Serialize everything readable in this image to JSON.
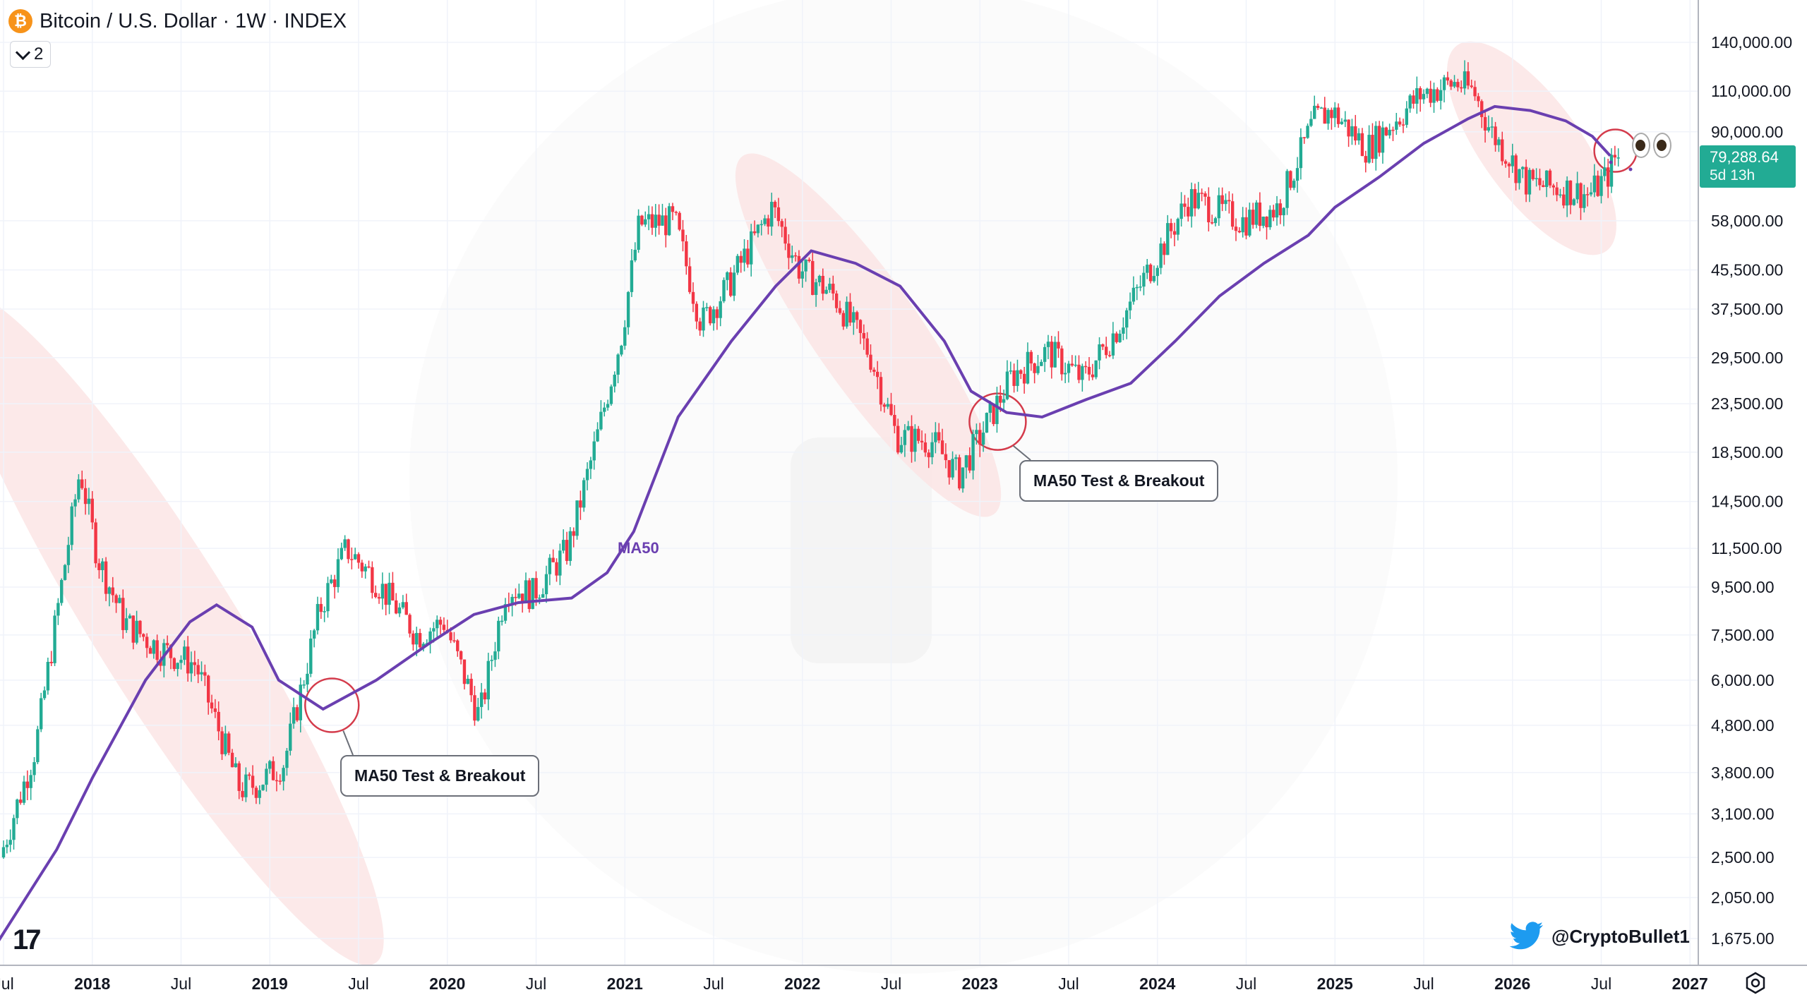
{
  "header": {
    "title": "Bitcoin / U.S. Dollar · 1W · INDEX",
    "symbol_icon": "bitcoin-icon",
    "indicator_count": "2"
  },
  "price_tag": {
    "price": "79,288.64",
    "countdown": "5d 13h"
  },
  "annotations": {
    "callout_1": "MA50 Test & Breakout",
    "callout_2": "MA50 Test & Breakout",
    "ma_label": "MA50"
  },
  "watermark": {
    "handle": "@CryptoBullet1"
  },
  "colors": {
    "up": "#22ab94",
    "down": "#f23645",
    "ma": "#6a3fb0",
    "highlight": "#fbe4e4",
    "accent": "#22ab94"
  },
  "chart_data": {
    "type": "line",
    "title": "Bitcoin / U.S. Dollar · 1W · INDEX",
    "y_scale": "log",
    "ylim": [
      1400,
      190000
    ],
    "x_ticks": [
      "Jul",
      "2018",
      "Jul",
      "2019",
      "Jul",
      "2020",
      "Jul",
      "2021",
      "Jul",
      "2022",
      "Jul",
      "2023",
      "Jul",
      "2024",
      "Jul",
      "2025",
      "Jul",
      "2026",
      "Jul",
      "2027"
    ],
    "y_ticks": [
      "140,000.00",
      "110,000.00",
      "90,000.00",
      "58,000.00",
      "45,500.00",
      "37,500.00",
      "29,500.00",
      "23,500.00",
      "18,500.00",
      "14,500.00",
      "11,500.00",
      "9,500.00",
      "7,500.00",
      "6,000.00",
      "4,800.00",
      "3,800.00",
      "3,100.00",
      "2,500.00",
      "2,050.00",
      "1,675.00"
    ],
    "y_tick_values": [
      140000,
      110000,
      90000,
      58000,
      45500,
      37500,
      29500,
      23500,
      18500,
      14500,
      11500,
      9500,
      7500,
      6000,
      4800,
      3800,
      3100,
      2500,
      2050,
      1675
    ],
    "grid": true,
    "series": [
      {
        "name": "Bitcoin / U.S. Dollar",
        "x": [
          2017.5,
          2017.7,
          2017.95,
          2018.05,
          2018.2,
          2018.4,
          2018.6,
          2018.85,
          2018.95,
          2019.1,
          2019.3,
          2019.45,
          2019.6,
          2019.85,
          2020.0,
          2020.2,
          2020.35,
          2020.5,
          2020.7,
          2020.85,
          2021.0,
          2021.1,
          2021.3,
          2021.45,
          2021.6,
          2021.85,
          2022.0,
          2022.2,
          2022.4,
          2022.55,
          2022.75,
          2022.9,
          2023.05,
          2023.2,
          2023.4,
          2023.6,
          2023.8,
          2023.95,
          2024.2,
          2024.5,
          2024.7,
          2024.9,
          2025.0,
          2025.2,
          2025.5,
          2025.7,
          2025.8,
          2025.9,
          2026.1,
          2026.3,
          2026.45,
          2026.55,
          2026.6
        ],
        "y": [
          2500,
          4300,
          17000,
          11000,
          8000,
          7000,
          6500,
          3500,
          3600,
          4000,
          8500,
          11500,
          10000,
          7500,
          8000,
          5000,
          9500,
          9200,
          11500,
          19000,
          33000,
          57000,
          58000,
          35000,
          42000,
          62000,
          46000,
          40000,
          30000,
          20000,
          19500,
          16500,
          21000,
          27000,
          30500,
          26500,
          34500,
          44000,
          65000,
          58000,
          62000,
          95000,
          100000,
          83000,
          108000,
          115000,
          110000,
          90000,
          70000,
          68000,
          66000,
          72000,
          79288.64
        ]
      },
      {
        "name": "MA50",
        "x": [
          2017.35,
          2017.8,
          2018.0,
          2018.3,
          2018.55,
          2018.7,
          2018.9,
          2019.05,
          2019.3,
          2019.6,
          2019.9,
          2020.15,
          2020.4,
          2020.7,
          2020.9,
          2021.05,
          2021.3,
          2021.6,
          2021.85,
          2022.05,
          2022.3,
          2022.55,
          2022.8,
          2022.95,
          2023.15,
          2023.35,
          2023.6,
          2023.85,
          2024.1,
          2024.35,
          2024.6,
          2024.85,
          2025.0,
          2025.25,
          2025.5,
          2025.75,
          2025.9,
          2026.1,
          2026.3,
          2026.45,
          2026.55
        ],
        "y": [
          1400,
          2600,
          3700,
          6000,
          8000,
          8700,
          7800,
          6000,
          5200,
          6000,
          7200,
          8300,
          8800,
          9000,
          10200,
          12500,
          22000,
          32000,
          42000,
          50000,
          47000,
          42000,
          32000,
          25000,
          22500,
          22000,
          24000,
          26000,
          32000,
          40000,
          47000,
          54000,
          62000,
          72000,
          85000,
          96000,
          102000,
          100000,
          95000,
          88000,
          80000
        ]
      }
    ]
  }
}
